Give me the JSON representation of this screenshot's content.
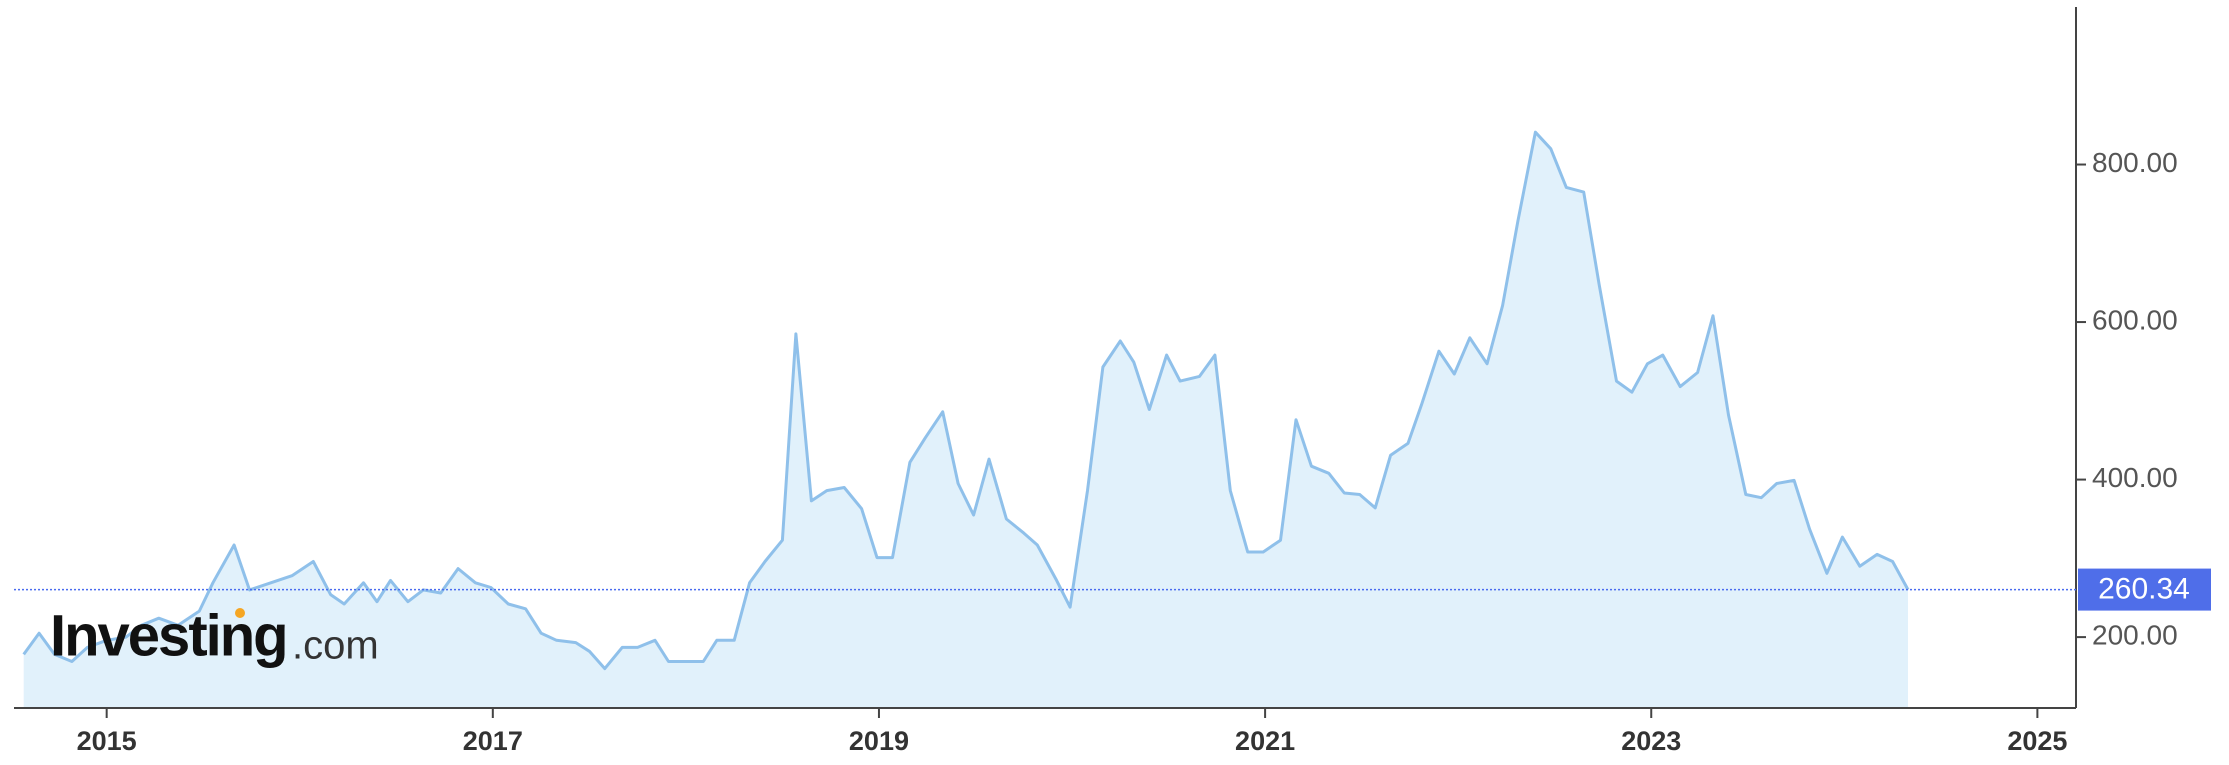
{
  "chart_data": {
    "type": "area",
    "watermark": {
      "brand": "Investing",
      "suffix": ".com"
    },
    "xlim": [
      2014.52,
      2025.2
    ],
    "xticks": [
      2015,
      2017,
      2019,
      2021,
      2023,
      2025
    ],
    "ylim": [
      110,
      1000
    ],
    "yticks": [
      {
        "value": 200,
        "label": "200.00"
      },
      {
        "value": 400,
        "label": "400.00"
      },
      {
        "value": 600,
        "label": "600.00"
      },
      {
        "value": 800,
        "label": "800.00"
      }
    ],
    "series": [
      {
        "color": "#8fc0ea",
        "fill": "#e1f1fb",
        "x": [
          2014.57,
          2014.65,
          2014.73,
          2014.82,
          2014.9,
          2015.0,
          2015.1,
          2015.18,
          2015.27,
          2015.37,
          2015.48,
          2015.55,
          2015.66,
          2015.74,
          2015.85,
          2015.96,
          2016.07,
          2016.16,
          2016.23,
          2016.33,
          2016.4,
          2016.47,
          2016.56,
          2016.64,
          2016.73,
          2016.82,
          2016.91,
          2016.99,
          2017.08,
          2017.17,
          2017.25,
          2017.33,
          2017.43,
          2017.5,
          2017.58,
          2017.67,
          2017.75,
          2017.84,
          2017.91,
          2018.0,
          2018.09,
          2018.16,
          2018.25,
          2018.33,
          2018.41,
          2018.5,
          2018.57,
          2018.65,
          2018.73,
          2018.82,
          2018.91,
          2018.99,
          2019.07,
          2019.16,
          2019.24,
          2019.33,
          2019.41,
          2019.49,
          2019.57,
          2019.66,
          2019.75,
          2019.82,
          2019.92,
          2019.99,
          2020.08,
          2020.16,
          2020.25,
          2020.32,
          2020.4,
          2020.49,
          2020.56,
          2020.66,
          2020.74,
          2020.82,
          2020.91,
          2020.99,
          2021.08,
          2021.16,
          2021.24,
          2021.33,
          2021.41,
          2021.49,
          2021.57,
          2021.65,
          2021.74,
          2021.81,
          2021.9,
          2021.98,
          2022.06,
          2022.15,
          2022.23,
          2022.31,
          2022.4,
          2022.48,
          2022.56,
          2022.65,
          2022.73,
          2022.82,
          2022.9,
          2022.98,
          2023.06,
          2023.15,
          2023.24,
          2023.32,
          2023.4,
          2023.49,
          2023.57,
          2023.65,
          2023.74,
          2023.82,
          2023.91,
          2023.99,
          2024.08,
          2024.17,
          2024.25,
          2024.33
        ],
        "values": [
          178,
          205,
          178,
          169,
          187,
          196,
          200,
          215,
          224,
          215,
          233,
          269,
          317,
          260,
          269,
          278,
          296,
          254,
          242,
          269,
          245,
          272,
          245,
          260,
          256,
          287,
          269,
          263,
          242,
          236,
          205,
          196,
          193,
          182,
          160,
          187,
          187,
          196,
          169,
          169,
          169,
          196,
          196,
          269,
          296,
          323,
          585,
          373,
          386,
          390,
          363,
          301,
          301,
          422,
          453,
          486,
          395,
          355,
          426,
          350,
          332,
          317,
          272,
          238,
          386,
          543,
          576,
          549,
          489,
          558,
          525,
          531,
          558,
          386,
          308,
          308,
          323,
          476,
          417,
          408,
          383,
          381,
          364,
          431,
          446,
          495,
          563,
          534,
          580,
          547,
          621,
          729,
          841,
          820,
          771,
          765,
          648,
          525,
          511,
          547,
          558,
          518,
          536,
          608,
          482,
          381,
          377,
          395,
          399,
          337,
          281,
          327,
          290,
          305,
          296,
          260.34
        ]
      }
    ]
  }
}
